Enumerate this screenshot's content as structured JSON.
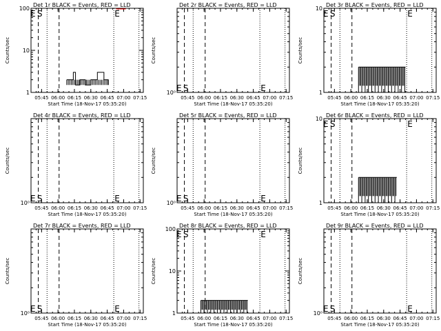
{
  "chart_data": [
    {
      "type": "line",
      "title": "Det 1r BLACK = Events, RED = LLD",
      "ylabel": "Counts/sec",
      "xlabel": "Start Time (18-Nov-17 05:35:20)",
      "ylog": true,
      "ylim": [
        1,
        100
      ],
      "yticks": [
        "1",
        "10",
        "100"
      ],
      "markers": {
        "E": "05:36",
        "S": "05:39"
      },
      "tail_E": "06:53",
      "series": [
        {
          "name": "Events",
          "color": "#000000",
          "points": [
            [
              "06:08",
              2
            ],
            [
              "06:11",
              2
            ],
            [
              "06:14",
              3
            ],
            [
              "06:16",
              1.5
            ],
            [
              "06:20",
              2
            ],
            [
              "06:25",
              1.5
            ],
            [
              "06:30",
              2
            ],
            [
              "06:36",
              3
            ],
            [
              "06:42",
              2
            ],
            [
              "06:46",
              1.5
            ]
          ]
        },
        {
          "name": "LLD",
          "color": "#ff0000",
          "points": [
            [
              "06:53",
              100
            ],
            [
              "07:02",
              100
            ]
          ]
        }
      ]
    },
    {
      "type": "line",
      "title": "Det 2r BLACK = Events, RED = LLD",
      "ylabel": "Counts/sec",
      "xlabel": "Start Time (18-Nov-17 05:35:20)",
      "ylog": true,
      "ylim": [
        1,
        10
      ],
      "yticks": [
        "10⁰"
      ],
      "markers": {
        "E": "05:36",
        "S": "05:39"
      },
      "tail_E": "06:53",
      "series": []
    },
    {
      "type": "line",
      "title": "Det 3r BLACK = Events, RED = LLD",
      "ylabel": "Counts/sec",
      "xlabel": "Start Time (18-Nov-17 05:35:20)",
      "ylog": true,
      "ylim": [
        1,
        10
      ],
      "yticks": [
        "1",
        "10"
      ],
      "markers": {
        "E": "05:36",
        "S": "05:39"
      },
      "tail_E": "06:53",
      "series": [
        {
          "name": "Events",
          "color": "#000000",
          "points": [
            [
              "06:07",
              2
            ],
            [
              "06:50",
              2
            ]
          ]
        }
      ]
    },
    {
      "type": "line",
      "title": "Det 4r BLACK = Events, RED = LLD",
      "ylabel": "Counts/sec",
      "xlabel": "Start Time (18-Nov-17 05:35:20)",
      "ylog": true,
      "ylim": [
        1,
        10
      ],
      "yticks": [
        "10⁰"
      ],
      "markers": {
        "E": "05:36",
        "S": "05:39"
      },
      "tail_E": "06:53",
      "series": []
    },
    {
      "type": "line",
      "title": "Det 5r BLACK = Events, RED = LLD",
      "ylabel": "Counts/sec",
      "xlabel": "Start Time (18-Nov-17 05:35:20)",
      "ylog": true,
      "ylim": [
        1,
        10
      ],
      "yticks": [
        "10⁰"
      ],
      "markers": {
        "E": "05:36",
        "S": "05:39"
      },
      "tail_E": "06:53",
      "series": []
    },
    {
      "type": "line",
      "title": "Det 6r BLACK = Events, RED = LLD",
      "ylabel": "Counts/sec",
      "xlabel": "Start Time (18-Nov-17 05:35:20)",
      "ylog": true,
      "ylim": [
        1,
        10
      ],
      "yticks": [
        "1",
        "10"
      ],
      "markers": {
        "E": "05:36",
        "S": "05:39"
      },
      "tail_E": "06:53",
      "series": [
        {
          "name": "Events",
          "color": "#000000",
          "points": [
            [
              "06:07",
              2
            ],
            [
              "06:42",
              2
            ]
          ]
        }
      ]
    },
    {
      "type": "line",
      "title": "Det 7r BLACK = Events, RED = LLD",
      "ylabel": "Counts/sec",
      "xlabel": "Start Time (18-Nov-17 05:35:20)",
      "ylog": true,
      "ylim": [
        1,
        10
      ],
      "yticks": [
        "10⁰"
      ],
      "markers": {
        "E": "05:36",
        "S": "05:39"
      },
      "tail_E": "06:53",
      "series": []
    },
    {
      "type": "line",
      "title": "Det 8r BLACK = Events, RED = LLD",
      "ylabel": "Counts/sec",
      "xlabel": "Start Time (18-Nov-17 05:35:20)",
      "ylog": true,
      "ylim": [
        1,
        100
      ],
      "yticks": [
        "1",
        "10",
        "100"
      ],
      "markers": {
        "E": "05:36",
        "S": "05:39"
      },
      "tail_E": "06:53",
      "series": [
        {
          "name": "Events",
          "color": "#000000",
          "points": [
            [
              "05:57",
              2
            ],
            [
              "06:40",
              2
            ]
          ]
        }
      ]
    },
    {
      "type": "line",
      "title": "Det 9r BLACK = Events, RED = LLD",
      "ylabel": "Counts/sec",
      "xlabel": "Start Time (18-Nov-17 05:35:20)",
      "ylog": true,
      "ylim": [
        1,
        10
      ],
      "yticks": [
        "10⁰"
      ],
      "markers": {
        "E": "05:36",
        "S": "05:39"
      },
      "tail_E": "06:53",
      "series": []
    }
  ],
  "xticks": [
    "05:45",
    "06:00",
    "06:15",
    "06:30",
    "06:45",
    "07:00",
    "07:15"
  ],
  "x_range": [
    "05:35:20",
    "07:18:00"
  ],
  "dashed_lines": [
    "05:42",
    "06:01"
  ],
  "dotted_lines": [
    "05:50",
    "06:51",
    "07:14"
  ]
}
